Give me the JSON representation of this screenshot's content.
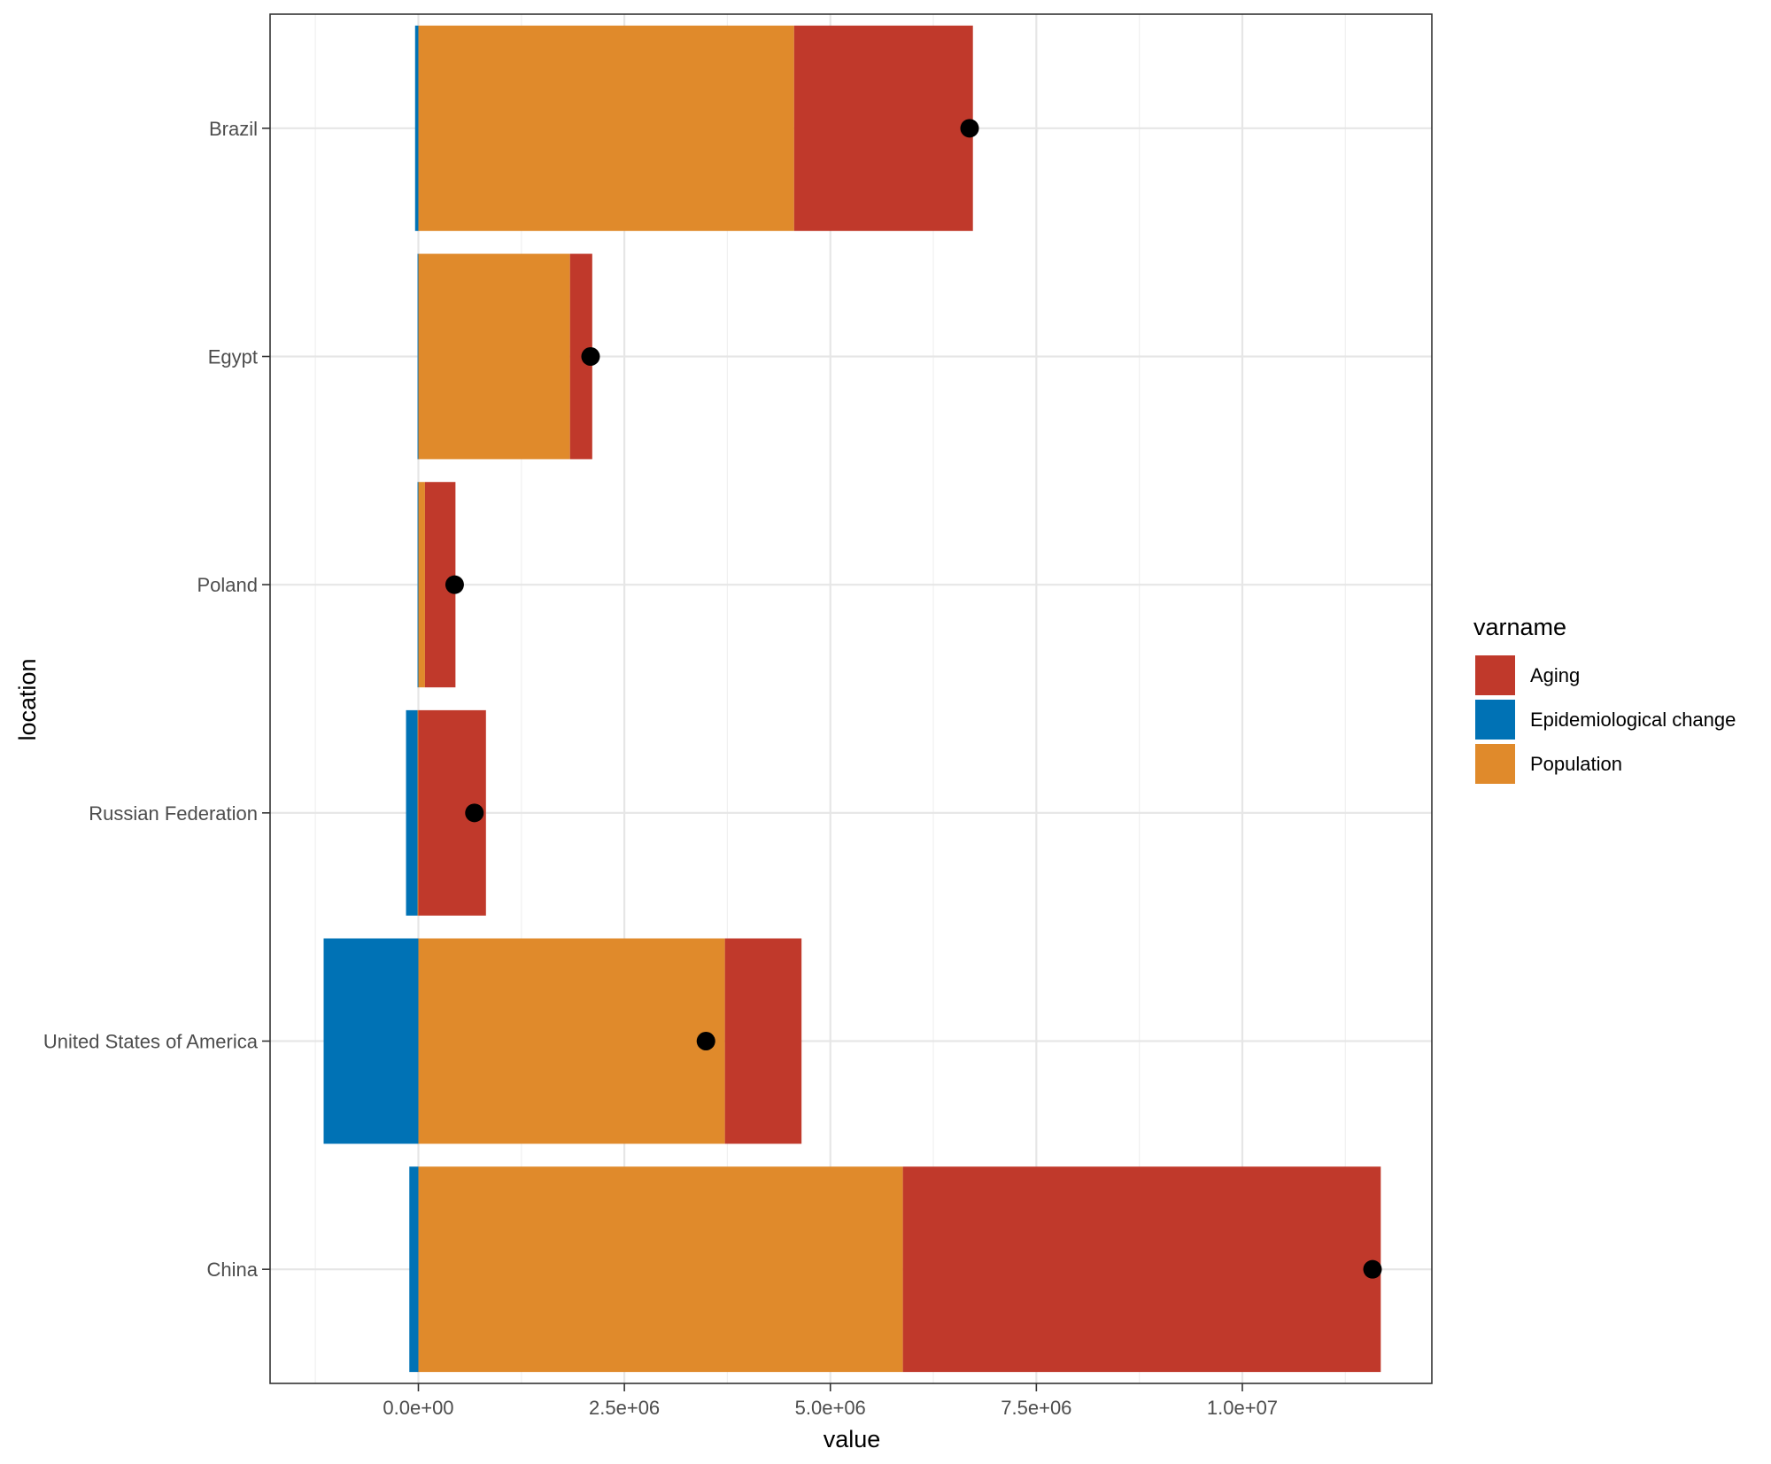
{
  "chart_data": {
    "type": "bar",
    "orientation": "horizontal",
    "stacked": true,
    "title": "",
    "xlabel": "value",
    "ylabel": "location",
    "xlim": [
      -1800000,
      12300000
    ],
    "x_ticks": [
      {
        "value": 0,
        "label": "0.0e+00"
      },
      {
        "value": 2500000,
        "label": "2.5e+06"
      },
      {
        "value": 5000000,
        "label": "5.0e+06"
      },
      {
        "value": 7500000,
        "label": "7.5e+06"
      },
      {
        "value": 10000000,
        "label": "1.0e+07"
      }
    ],
    "x_minor_grid": [
      -1250000,
      1250000,
      3750000,
      6250000,
      8750000,
      11250000
    ],
    "categories": [
      "Brazil",
      "Egypt",
      "Poland",
      "Russian Federation",
      "United States of America",
      "China"
    ],
    "series": [
      {
        "name": "Aging",
        "color": "#C0392B",
        "values": [
          2170000,
          270000,
          370000,
          820000,
          930000,
          5800000
        ]
      },
      {
        "name": "Epidemiological change",
        "color": "#0072B5",
        "values": [
          -40000,
          -10000,
          -10000,
          -140000,
          -1150000,
          -110000
        ]
      },
      {
        "name": "Population",
        "color": "#E08A2B",
        "values": [
          4560000,
          1840000,
          80000,
          -10000,
          3720000,
          5880000
        ]
      }
    ],
    "stack_order": [
      "Population",
      "Aging",
      "Epidemiological change"
    ],
    "total_points": [
      6690000,
      2090000,
      440000,
      680000,
      3490000,
      11580000
    ],
    "legend": {
      "title": "varname",
      "position": "right",
      "items": [
        "Aging",
        "Epidemiological change",
        "Population"
      ]
    },
    "grid": true
  }
}
